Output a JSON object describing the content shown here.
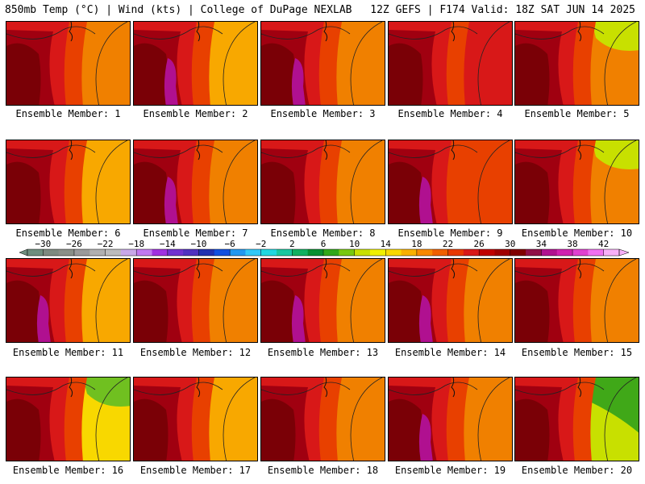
{
  "header": {
    "left": "850mb Temp (°C) | Wind (kts) | College of DuPage NEXLAB",
    "right": "12Z GEFS | F174 Valid: 18Z SAT JUN 14 2025"
  },
  "member_prefix": "Ensemble Member: ",
  "members": [
    "1",
    "2",
    "3",
    "4",
    "5",
    "6",
    "7",
    "8",
    "9",
    "10",
    "11",
    "12",
    "13",
    "14",
    "15",
    "16",
    "17",
    "18",
    "19",
    "20"
  ],
  "scale": {
    "labels": [
      "-30",
      "-26",
      "-22",
      "-18",
      "-14",
      "-10",
      "-6",
      "-2",
      "2",
      "6",
      "10",
      "14",
      "18",
      "22",
      "26",
      "30",
      "34",
      "38",
      "42"
    ],
    "colors": [
      "#6e8e7e",
      "#7d8a80",
      "#8a8f88",
      "#9a9a9a",
      "#b0b0b0",
      "#bcbcbc",
      "#c8a8e8",
      "#c078f0",
      "#a030e0",
      "#7030d0",
      "#5030c0",
      "#2030b0",
      "#1050e0",
      "#2098f0",
      "#30c8f8",
      "#20d8e0",
      "#18c8a0",
      "#10b060",
      "#089030",
      "#30a818",
      "#78c810",
      "#c8e000",
      "#f0f000",
      "#f8d800",
      "#f8b000",
      "#f88800",
      "#f06000",
      "#e83800",
      "#d81818",
      "#c00000",
      "#a00000",
      "#800000",
      "#901048",
      "#b01090",
      "#d020b0",
      "#e040d0",
      "#f070f0",
      "#f8b0f8"
    ]
  },
  "palette": {
    "deep": "#7a0006",
    "darkred": "#a00010",
    "red": "#d81818",
    "redorange": "#e84000",
    "orange": "#f08000",
    "lightorange": "#f8a800",
    "yellow": "#f8d800",
    "lightyellow": "#f0f000",
    "yellowgreen": "#c8e000",
    "green": "#70c020",
    "darkgreen": "#40a818",
    "magenta": "#b01090"
  }
}
